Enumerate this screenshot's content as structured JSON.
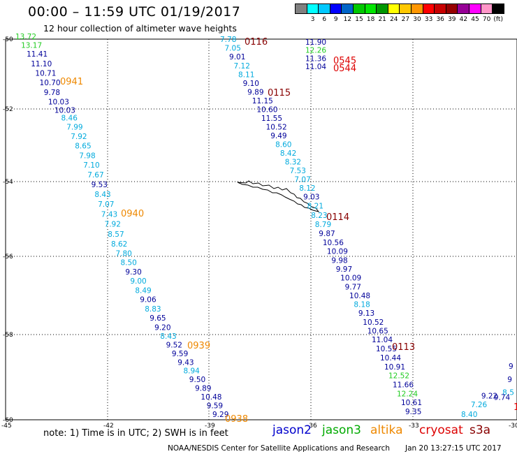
{
  "header": {
    "title": "00:00 – 11:59 UTC 01/19/2017",
    "subtitle": "12 hour collection of altimeter wave heights"
  },
  "colorbar": {
    "colors": [
      "#808080",
      "#00ffff",
      "#00c8ff",
      "#0000ff",
      "#0064c8",
      "#00c800",
      "#00e600",
      "#009600",
      "#ffff00",
      "#ffc800",
      "#ff9600",
      "#ff0000",
      "#c80000",
      "#960000",
      "#960096",
      "#ff00ff",
      "#ff96c8",
      "#000000"
    ],
    "labels": [
      "3",
      "6",
      "9",
      "12",
      "15",
      "18",
      "21",
      "24",
      "27",
      "30",
      "33",
      "36",
      "39",
      "42",
      "45",
      "70",
      "(ft)"
    ]
  },
  "axes": {
    "lat_labels": [
      "-50",
      "-52",
      "-54",
      "-56",
      "-58",
      "-60"
    ],
    "lon_labels": [
      "-45",
      "-42",
      "-39",
      "-36",
      "-33",
      "-30"
    ]
  },
  "palette": {
    "navy": "#000099",
    "cyan": "#00aadd",
    "green": "#22cc22",
    "orange": "#ee8800",
    "red": "#dd0000",
    "darkred": "#880000"
  },
  "tracks": [
    {
      "id": "left",
      "readings": [
        {
          "v": "13.72",
          "c": "green"
        },
        {
          "v": "13.17",
          "c": "green"
        },
        {
          "v": "11.41",
          "c": "navy"
        },
        {
          "v": "11.10",
          "c": "navy"
        },
        {
          "v": "10.71",
          "c": "navy"
        },
        {
          "v": "10.70",
          "c": "navy"
        },
        {
          "v": "9.78",
          "c": "navy"
        },
        {
          "v": "10.03",
          "c": "navy"
        },
        {
          "v": "10.03",
          "c": "navy"
        },
        {
          "v": "8.46",
          "c": "cyan"
        },
        {
          "v": "7.99",
          "c": "cyan"
        },
        {
          "v": "7.92",
          "c": "cyan"
        },
        {
          "v": "8.65",
          "c": "cyan"
        },
        {
          "v": "7.98",
          "c": "cyan"
        },
        {
          "v": "7.10",
          "c": "cyan"
        },
        {
          "v": "7.67",
          "c": "cyan"
        },
        {
          "v": "9.53",
          "c": "navy"
        },
        {
          "v": "8.43",
          "c": "cyan"
        },
        {
          "v": "7.07",
          "c": "cyan"
        },
        {
          "v": "7.43",
          "c": "cyan"
        },
        {
          "v": "7.92",
          "c": "cyan"
        },
        {
          "v": "8.57",
          "c": "cyan"
        },
        {
          "v": "8.62",
          "c": "cyan"
        },
        {
          "v": "7.80",
          "c": "cyan"
        },
        {
          "v": "8.50",
          "c": "cyan"
        },
        {
          "v": "9.30",
          "c": "navy"
        },
        {
          "v": "9.00",
          "c": "cyan"
        },
        {
          "v": "8.49",
          "c": "cyan"
        },
        {
          "v": "9.06",
          "c": "navy"
        },
        {
          "v": "8.83",
          "c": "cyan"
        },
        {
          "v": "9.65",
          "c": "navy"
        },
        {
          "v": "9.20",
          "c": "navy"
        },
        {
          "v": "8.43",
          "c": "cyan"
        },
        {
          "v": "9.52",
          "c": "navy"
        },
        {
          "v": "9.59",
          "c": "navy"
        },
        {
          "v": "9.43",
          "c": "navy"
        },
        {
          "v": "8.94",
          "c": "cyan"
        },
        {
          "v": "9.50",
          "c": "navy"
        },
        {
          "v": "9.89",
          "c": "navy"
        },
        {
          "v": "10.48",
          "c": "navy"
        },
        {
          "v": "9.59",
          "c": "navy"
        },
        {
          "v": "9.29",
          "c": "navy"
        }
      ]
    },
    {
      "id": "right",
      "readings": [
        {
          "v": "7.78",
          "c": "cyan"
        },
        {
          "v": "7.05",
          "c": "cyan"
        },
        {
          "v": "9.01",
          "c": "navy"
        },
        {
          "v": "7.12",
          "c": "cyan"
        },
        {
          "v": "8.11",
          "c": "cyan"
        },
        {
          "v": "9.10",
          "c": "navy"
        },
        {
          "v": "9.89",
          "c": "navy"
        },
        {
          "v": "11.15",
          "c": "navy"
        },
        {
          "v": "10.60",
          "c": "navy"
        },
        {
          "v": "11.55",
          "c": "navy"
        },
        {
          "v": "10.52",
          "c": "navy"
        },
        {
          "v": "9.49",
          "c": "navy"
        },
        {
          "v": "8.60",
          "c": "cyan"
        },
        {
          "v": "8.42",
          "c": "cyan"
        },
        {
          "v": "8.32",
          "c": "cyan"
        },
        {
          "v": "7.53",
          "c": "cyan"
        },
        {
          "v": "7.07",
          "c": "cyan"
        },
        {
          "v": "8.12",
          "c": "cyan"
        },
        {
          "v": "9.03",
          "c": "navy"
        },
        {
          "v": "8.21",
          "c": "cyan"
        },
        {
          "v": "8.23",
          "c": "cyan"
        },
        {
          "v": "8.79",
          "c": "cyan"
        },
        {
          "v": "9.87",
          "c": "navy"
        },
        {
          "v": "10.56",
          "c": "navy"
        },
        {
          "v": "10.09",
          "c": "navy"
        },
        {
          "v": "9.98",
          "c": "navy"
        },
        {
          "v": "9.97",
          "c": "navy"
        },
        {
          "v": "10.09",
          "c": "navy"
        },
        {
          "v": "9.77",
          "c": "navy"
        },
        {
          "v": "10.48",
          "c": "navy"
        },
        {
          "v": "8.18",
          "c": "cyan"
        },
        {
          "v": "9.13",
          "c": "navy"
        },
        {
          "v": "10.52",
          "c": "navy"
        },
        {
          "v": "10.65",
          "c": "navy"
        },
        {
          "v": "11.04",
          "c": "navy"
        },
        {
          "v": "10.55",
          "c": "navy"
        },
        {
          "v": "10.44",
          "c": "navy"
        },
        {
          "v": "10.91",
          "c": "navy"
        },
        {
          "v": "12.52",
          "c": "green"
        },
        {
          "v": "11.66",
          "c": "navy"
        },
        {
          "v": "12.24",
          "c": "green"
        },
        {
          "v": "10.61",
          "c": "navy"
        },
        {
          "v": "9.35",
          "c": "navy"
        }
      ]
    },
    {
      "id": "top",
      "readings": [
        {
          "v": "11.90",
          "c": "navy"
        },
        {
          "v": "12.26",
          "c": "green"
        },
        {
          "v": "11.36",
          "c": "navy"
        },
        {
          "v": "11.04",
          "c": "navy"
        }
      ]
    },
    {
      "id": "edge",
      "readings": [
        {
          "v": "9",
          "c": "navy"
        },
        {
          "v": "9",
          "c": "navy"
        },
        {
          "v": "8.5",
          "c": "cyan"
        },
        {
          "v": "9.74",
          "c": "navy"
        },
        {
          "v": "9.22",
          "c": "navy"
        },
        {
          "v": "7.26",
          "c": "cyan"
        },
        {
          "v": "8.40",
          "c": "cyan"
        }
      ]
    }
  ],
  "time_tags": [
    {
      "text": "0116",
      "c": "darkred"
    },
    {
      "text": "0941",
      "c": "orange"
    },
    {
      "text": "0545",
      "c": "red"
    },
    {
      "text": "0544",
      "c": "red"
    },
    {
      "text": "0115",
      "c": "darkred"
    },
    {
      "text": "0940",
      "c": "orange"
    },
    {
      "text": "0114",
      "c": "darkred"
    },
    {
      "text": "0939",
      "c": "orange"
    },
    {
      "text": "0113",
      "c": "darkred"
    },
    {
      "text": "0938",
      "c": "orange"
    },
    {
      "text": "1",
      "c": "red"
    }
  ],
  "footer": {
    "note": "note: 1) Time is in UTC; 2) SWH is in feet",
    "legend": [
      {
        "name": "jason2",
        "color": "#0000cc"
      },
      {
        "name": "jason3",
        "color": "#00aa00"
      },
      {
        "name": "altika",
        "color": "#ee8800"
      },
      {
        "name": "cryosat",
        "color": "#dd0000"
      },
      {
        "name": "s3a",
        "color": "#880000"
      }
    ],
    "credit": "NOAA/NESDIS Center for Satellite Applications and Research",
    "date": "Jan 20 13:27:15 UTC 2017"
  }
}
